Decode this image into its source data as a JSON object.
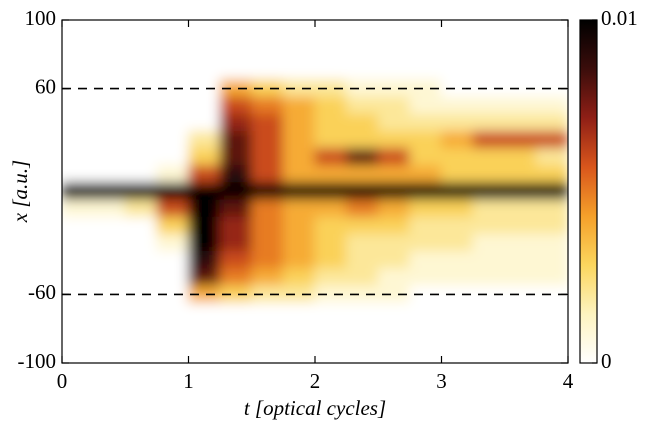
{
  "chart_data": {
    "type": "heatmap",
    "xlabel": "t [optical cycles]",
    "ylabel": "x [a.u.]",
    "xlim": [
      0,
      4
    ],
    "xticks": [
      0,
      1,
      2,
      3,
      4
    ],
    "ylim": [
      -100,
      100
    ],
    "yticks": [
      -100,
      -60,
      60,
      100
    ],
    "zlim": [
      0,
      0.01
    ],
    "zticks": [
      0,
      0.01
    ],
    "colormap": [
      "#ffffff",
      "#fdf3c0",
      "#fbd65e",
      "#f5a02a",
      "#d9561c",
      "#8f1f16",
      "#3b0d0b",
      "#000000"
    ],
    "hlines": [
      60,
      -60
    ],
    "x": [
      0.125,
      0.375,
      0.625,
      0.875,
      1.125,
      1.375,
      1.625,
      1.875,
      2.125,
      2.375,
      2.625,
      2.875,
      3.125,
      3.375,
      3.625,
      3.875
    ],
    "y": [
      90,
      80,
      70,
      60,
      50,
      40,
      30,
      20,
      10,
      0,
      -10,
      -20,
      -30,
      -40,
      -50,
      -60,
      -70,
      -80,
      -90
    ],
    "z": [
      [
        0,
        0,
        0,
        0,
        0,
        0,
        0,
        0,
        0,
        0,
        0,
        0,
        0,
        0,
        0,
        0
      ],
      [
        0,
        0,
        0,
        0,
        0,
        0,
        0,
        0,
        0,
        0,
        0,
        0,
        0,
        0,
        0,
        0
      ],
      [
        0,
        0,
        0,
        0,
        0,
        0,
        0,
        0,
        0,
        0,
        0,
        0,
        0,
        0,
        0,
        0
      ],
      [
        0,
        0,
        0,
        0,
        0,
        0.004,
        0.003,
        0.002,
        0.002,
        0.001,
        0.001,
        0.001,
        0,
        0,
        0,
        0
      ],
      [
        0,
        0,
        0,
        0,
        0,
        0.006,
        0.005,
        0.004,
        0.003,
        0.002,
        0.002,
        0.001,
        0.001,
        0.001,
        0.001,
        0.001
      ],
      [
        0,
        0,
        0,
        0,
        0,
        0.007,
        0.006,
        0.004,
        0.003,
        0.003,
        0.002,
        0.002,
        0.002,
        0.002,
        0.002,
        0.002
      ],
      [
        0,
        0,
        0,
        0,
        0.002,
        0.008,
        0.006,
        0.004,
        0.003,
        0.003,
        0.003,
        0.003,
        0.004,
        0.006,
        0.006,
        0.006
      ],
      [
        0,
        0,
        0,
        0,
        0.003,
        0.008,
        0.006,
        0.004,
        0.006,
        0.008,
        0.006,
        0.003,
        0.003,
        0.003,
        0.003,
        0.002
      ],
      [
        0,
        0,
        0,
        0.001,
        0.006,
        0.009,
        0.006,
        0.004,
        0.004,
        0.004,
        0.004,
        0.004,
        0.003,
        0.003,
        0.003,
        0.003
      ],
      [
        0.01,
        0.01,
        0.01,
        0.01,
        0.01,
        0.01,
        0.01,
        0.01,
        0.01,
        0.01,
        0.01,
        0.01,
        0.01,
        0.01,
        0.01,
        0.01
      ],
      [
        0.001,
        0.001,
        0.002,
        0.006,
        0.01,
        0.008,
        0.005,
        0.004,
        0.004,
        0.005,
        0.004,
        0.003,
        0.003,
        0.002,
        0.002,
        0.002
      ],
      [
        0,
        0,
        0,
        0.003,
        0.01,
        0.007,
        0.005,
        0.004,
        0.003,
        0.003,
        0.003,
        0.002,
        0.002,
        0.002,
        0.002,
        0.002
      ],
      [
        0,
        0,
        0,
        0.001,
        0.01,
        0.007,
        0.005,
        0.004,
        0.003,
        0.002,
        0.002,
        0.002,
        0.002,
        0.001,
        0.001,
        0.001
      ],
      [
        0,
        0,
        0,
        0,
        0.009,
        0.006,
        0.005,
        0.004,
        0.003,
        0.002,
        0.002,
        0.001,
        0.001,
        0.001,
        0.001,
        0.001
      ],
      [
        0,
        0,
        0,
        0,
        0.008,
        0.005,
        0.004,
        0.003,
        0.002,
        0.002,
        0.001,
        0.001,
        0.001,
        0.001,
        0.001,
        0.001
      ],
      [
        0,
        0,
        0,
        0,
        0.004,
        0.003,
        0.002,
        0.002,
        0.001,
        0.001,
        0.001,
        0,
        0,
        0,
        0,
        0
      ],
      [
        0,
        0,
        0,
        0,
        0,
        0,
        0,
        0,
        0,
        0,
        0,
        0,
        0,
        0,
        0,
        0
      ],
      [
        0,
        0,
        0,
        0,
        0,
        0,
        0,
        0,
        0,
        0,
        0,
        0,
        0,
        0,
        0,
        0
      ],
      [
        0,
        0,
        0,
        0,
        0,
        0,
        0,
        0,
        0,
        0,
        0,
        0,
        0,
        0,
        0,
        0
      ]
    ]
  }
}
